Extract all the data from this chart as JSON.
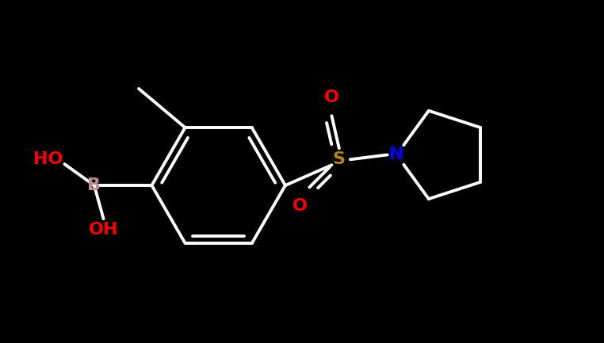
{
  "bg_color": "#000000",
  "bond_color": "#ffffff",
  "bond_width": 2.8,
  "atom_colors": {
    "O": "#ff0000",
    "S": "#b8860b",
    "N": "#0000ff",
    "B": "#bc8f8f",
    "C": "#ffffff",
    "H": "#ffffff"
  },
  "figsize": [
    7.62,
    4.33
  ],
  "dpi": 100
}
